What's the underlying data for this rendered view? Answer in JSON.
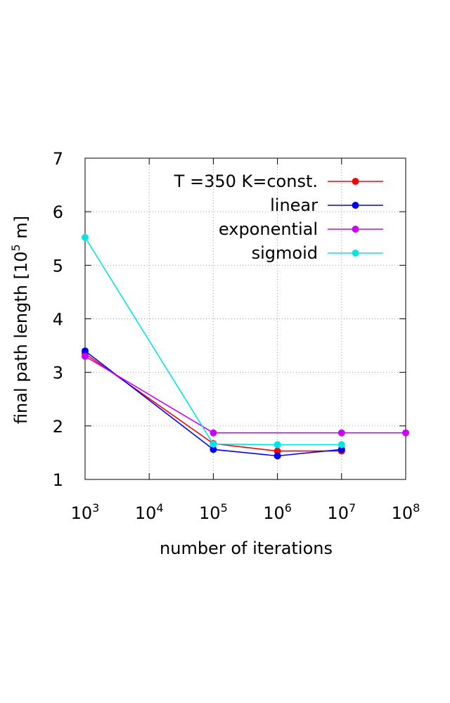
{
  "chart_data": {
    "type": "line",
    "xlabel": "number of iterations",
    "ylabel_parts": {
      "before": "final path length [10",
      "sup": "5",
      "after": " m]"
    },
    "x_scale": "log",
    "xlim": [
      1000,
      100000000
    ],
    "ylim": [
      1,
      7
    ],
    "x_ticks": [
      {
        "value": 1000,
        "base": "10",
        "exp": "3"
      },
      {
        "value": 10000,
        "base": "10",
        "exp": "4"
      },
      {
        "value": 100000,
        "base": "10",
        "exp": "5"
      },
      {
        "value": 1000000,
        "base": "10",
        "exp": "6"
      },
      {
        "value": 10000000,
        "base": "10",
        "exp": "7"
      },
      {
        "value": 100000000,
        "base": "10",
        "exp": "8"
      }
    ],
    "y_ticks": [
      1,
      2,
      3,
      4,
      5,
      6,
      7
    ],
    "grid": true,
    "grid_style": "dotted",
    "legend_position": "top-right",
    "series": [
      {
        "name": "T =350 K=const.",
        "color": "#ff0000",
        "x": [
          1000,
          100000,
          1000000,
          10000000
        ],
        "y": [
          3.35,
          1.67,
          1.53,
          1.53
        ]
      },
      {
        "name": "linear",
        "color": "#0000ff",
        "x": [
          1000,
          100000,
          1000000,
          10000000
        ],
        "y": [
          3.4,
          1.56,
          1.44,
          1.56
        ]
      },
      {
        "name": "exponential",
        "color": "#cc00ff",
        "x": [
          1000,
          100000,
          10000000,
          100000000
        ],
        "y": [
          3.3,
          1.87,
          1.87,
          1.87
        ]
      },
      {
        "name": "sigmoid",
        "color": "#00e5e5",
        "x": [
          1000,
          100000,
          1000000,
          10000000
        ],
        "y": [
          5.52,
          1.66,
          1.65,
          1.65
        ]
      }
    ]
  }
}
